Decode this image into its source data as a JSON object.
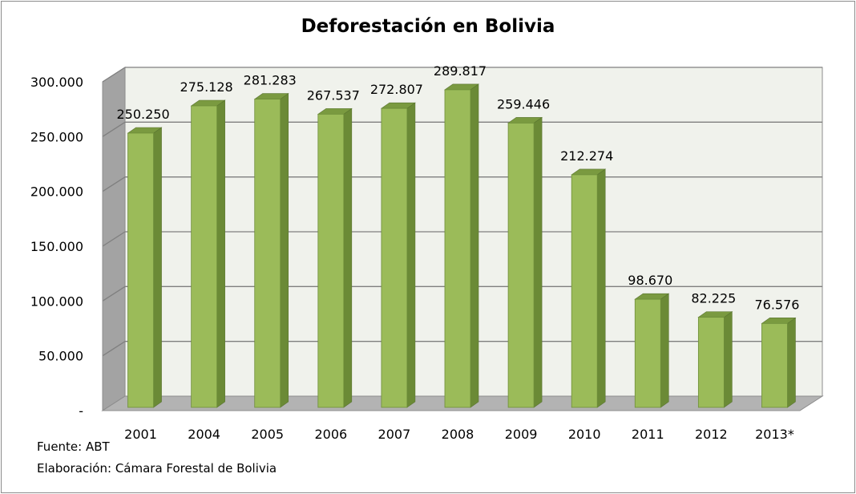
{
  "chart_data": {
    "type": "bar",
    "title": "Deforestación en Bolivia",
    "categories": [
      "2001",
      "2004",
      "2005",
      "2006",
      "2007",
      "2008",
      "2009",
      "2010",
      "2011",
      "2012",
      "2013*"
    ],
    "values": [
      250250,
      275128,
      281283,
      267537,
      272807,
      289817,
      259446,
      212274,
      98670,
      82225,
      76576
    ],
    "value_labels": [
      "250.250",
      "275.128",
      "281.283",
      "267.537",
      "272.807",
      "289.817",
      "259.446",
      "212.274",
      "98.670",
      "82.225",
      "76.576"
    ],
    "y_ticks": [
      0,
      50000,
      100000,
      150000,
      200000,
      250000,
      300000
    ],
    "y_tick_labels": [
      "-",
      "50.000",
      "100.000",
      "150.000",
      "200.000",
      "250.000",
      "300.000"
    ],
    "ylim": [
      0,
      300000
    ],
    "xlabel": "",
    "ylabel": "",
    "grid": true,
    "legend": "none",
    "style": "3d-column",
    "colors": {
      "bar_front": "#9bbb59",
      "bar_side": "#6b8a36",
      "bar_top": "#7a9a40",
      "wall": "#f0f2ec",
      "side_wall": "#a3a3a3",
      "floor": "#b3b3b3",
      "gridline": "#7f7f7f"
    }
  },
  "footnotes": {
    "source": "Fuente: ABT",
    "author": "Elaboración: Cámara Forestal de Bolivia"
  }
}
